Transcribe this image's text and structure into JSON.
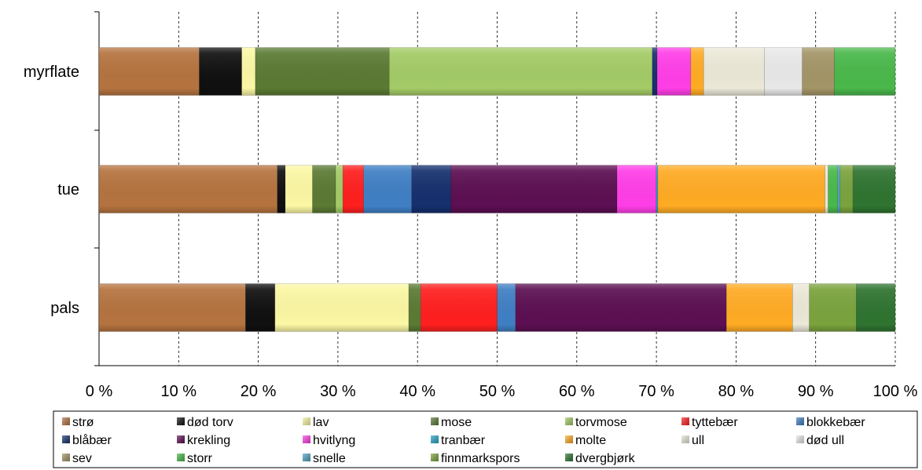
{
  "chart_data": {
    "type": "bar",
    "orientation": "horizontal",
    "stacked": "percent",
    "categories": [
      "myrflate",
      "tue",
      "pals"
    ],
    "x_ticks": [
      "0 %",
      "10 %",
      "20 %",
      "30 %",
      "40 %",
      "50 %",
      "60 %",
      "70 %",
      "80 %",
      "90 %",
      "100 %"
    ],
    "xlim": [
      0,
      100
    ],
    "grid": "vertical-dashed",
    "legend_position": "bottom",
    "series": [
      {
        "name": "strø",
        "color": "#b5733f",
        "values": [
          12.5,
          22.3,
          18.4
        ]
      },
      {
        "name": "død torv",
        "color": "#101010",
        "values": [
          5.3,
          1.0,
          3.7
        ]
      },
      {
        "name": "lav",
        "color": "#fbf7a4",
        "values": [
          1.7,
          3.4,
          16.8
        ]
      },
      {
        "name": "mose",
        "color": "#5b7a33",
        "values": [
          16.7,
          2.9,
          1.5
        ]
      },
      {
        "name": "torvmose",
        "color": "#a3cb66",
        "values": [
          32.8,
          0.9,
          0.0
        ]
      },
      {
        "name": "tyttebær",
        "color": "#ff1f1f",
        "values": [
          0.0,
          2.6,
          9.6
        ]
      },
      {
        "name": "blokkebær",
        "color": "#3f7fc4",
        "values": [
          0.0,
          6.0,
          2.3
        ]
      },
      {
        "name": "blåbær",
        "color": "#16306e",
        "values": [
          0.6,
          4.9,
          0.0
        ]
      },
      {
        "name": "krekling",
        "color": "#5c0f52",
        "values": [
          0.0,
          20.8,
          26.5
        ]
      },
      {
        "name": "hvitlyng",
        "color": "#ff3ee7",
        "values": [
          4.2,
          4.9,
          0.0
        ]
      },
      {
        "name": "tranbær",
        "color": "#26a4c6",
        "values": [
          0.0,
          0.2,
          0.0
        ]
      },
      {
        "name": "molte",
        "color": "#ffab24",
        "values": [
          1.6,
          20.9,
          8.3
        ]
      },
      {
        "name": "ull",
        "color": "#ebe8d7",
        "values": [
          7.6,
          0.4,
          2.1
        ]
      },
      {
        "name": "død ull",
        "color": "#e8e8e8",
        "values": [
          4.7,
          0.0,
          0.0
        ]
      },
      {
        "name": "sev",
        "color": "#a39567",
        "values": [
          4.0,
          0.0,
          0.0
        ]
      },
      {
        "name": "storr",
        "color": "#49b84a",
        "values": [
          7.6,
          1.2,
          0.0
        ]
      },
      {
        "name": "snelle",
        "color": "#4fa3c0",
        "values": [
          0.0,
          0.3,
          0.0
        ]
      },
      {
        "name": "finnmarkspors",
        "color": "#7aa33d",
        "values": [
          0.0,
          1.6,
          5.9
        ]
      },
      {
        "name": "dvergbjørk",
        "color": "#2f7430",
        "values": [
          0.0,
          5.3,
          4.9
        ]
      }
    ]
  }
}
